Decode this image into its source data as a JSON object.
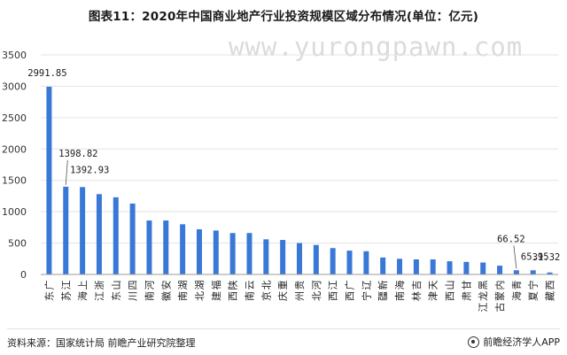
{
  "title": "图表11：2020年中国商业地产行业投资规模区域分布情况(单位：亿元)",
  "watermark": "www.yurongpawn.com",
  "source": "资料来源：国家统计局 前瞻产业研究院整理",
  "brand": "前瞻经济学人APP",
  "colors": {
    "bar": "#3a78d8",
    "grid": "#e3e3e3",
    "axis": "#9a9a9a"
  },
  "chart_data": {
    "type": "bar",
    "title": "图表11：2020年中国商业地产行业投资规模区域分布情况(单位：亿元)",
    "xlabel": "",
    "ylabel": "",
    "ylim": [
      0,
      3500
    ],
    "yticks": [
      0,
      500,
      1000,
      1500,
      2000,
      2500,
      3000,
      3500
    ],
    "grid": "horizontal",
    "categories": [
      "广东",
      "江苏",
      "上海",
      "浙江",
      "山东",
      "四川",
      "河南",
      "安徽",
      "湖南",
      "湖北",
      "福建",
      "陕西",
      "云南",
      "北京",
      "重庆",
      "贵州",
      "河北",
      "江西",
      "广西",
      "辽宁",
      "新疆",
      "海南",
      "吉林",
      "天津",
      "山西",
      "甘肃",
      "黑龙江",
      "内蒙古",
      "青海",
      "宁夏",
      "西藏"
    ],
    "values": [
      2991.85,
      1398.82,
      1392.93,
      1280,
      1230,
      1130,
      860,
      860,
      800,
      720,
      700,
      660,
      660,
      560,
      550,
      500,
      470,
      420,
      380,
      370,
      270,
      250,
      240,
      240,
      210,
      200,
      190,
      140,
      66.52,
      65.95,
      31.32
    ],
    "data_labels": [
      {
        "index": 0,
        "text": "2991.85"
      },
      {
        "index": 1,
        "text": "1398.82"
      },
      {
        "index": 2,
        "text": "1392.93"
      },
      {
        "index": 28,
        "text": "66.52"
      },
      {
        "index": 29,
        "text": "65.95"
      },
      {
        "index": 30,
        "text": "31.32"
      }
    ]
  }
}
